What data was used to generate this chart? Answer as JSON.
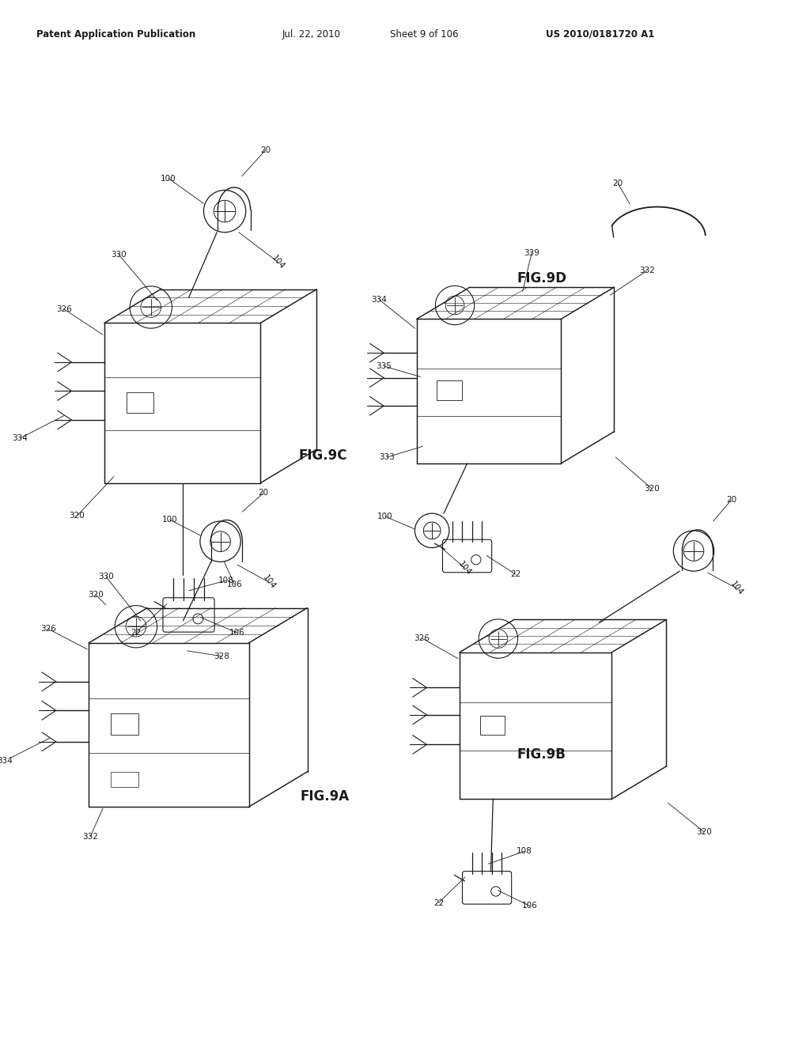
{
  "background_color": "#ffffff",
  "page_width": 10.24,
  "page_height": 13.2,
  "header_left": "Patent Application Publication",
  "header_mid1": "Jul. 22, 2010",
  "header_mid2": "Sheet 9 of 106",
  "header_right": "US 2010/0181720 A1",
  "line_color": "#1a1a1a",
  "fig9c_label": "FIG.9C",
  "fig9d_label": "FIG.9D",
  "fig9a_label": "FIG.9A",
  "fig9b_label": "FIG.9B"
}
